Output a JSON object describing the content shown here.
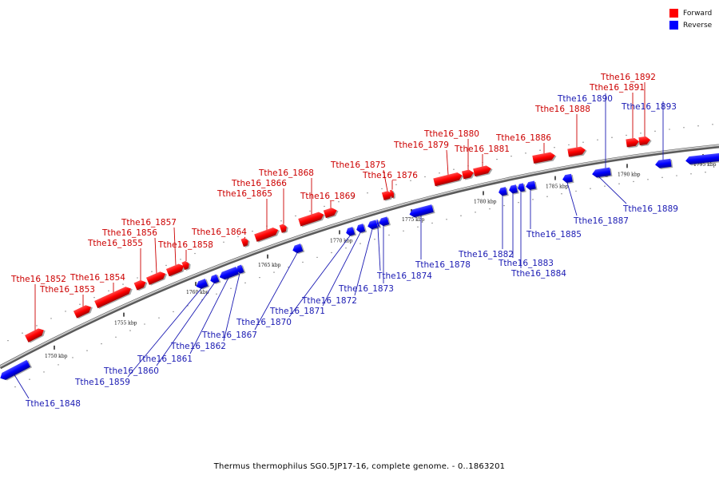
{
  "caption": "Thermus thermophilus SG0.5JP17-16, complete genome. - 0..1863201",
  "legend": {
    "forward_label": "Forward",
    "reverse_label": "Reverse",
    "forward_color": "#ff0000",
    "reverse_color": "#0000ff"
  },
  "colors": {
    "forward_label": "#cc0000",
    "reverse_label": "#1a1ab3",
    "axis": "#888888"
  },
  "ticks": [
    "1750 kbp",
    "1755 kbp",
    "1760 kbp",
    "1765 kbp",
    "1770 kbp",
    "1775 kbp",
    "1780 kbp",
    "1785 kbp",
    "1790 kbp",
    "1795 kbp"
  ],
  "genes": [
    {
      "name": "Tthe16_1848",
      "strand": "reverse"
    },
    {
      "name": "Tthe16_1852",
      "strand": "forward"
    },
    {
      "name": "Tthe16_1853",
      "strand": "forward"
    },
    {
      "name": "Tthe16_1854",
      "strand": "forward"
    },
    {
      "name": "Tthe16_1855",
      "strand": "forward"
    },
    {
      "name": "Tthe16_1856",
      "strand": "forward"
    },
    {
      "name": "Tthe16_1857",
      "strand": "forward"
    },
    {
      "name": "Tthe16_1858",
      "strand": "forward"
    },
    {
      "name": "Tthe16_1859",
      "strand": "reverse"
    },
    {
      "name": "Tthe16_1860",
      "strand": "reverse"
    },
    {
      "name": "Tthe16_1861",
      "strand": "reverse"
    },
    {
      "name": "Tthe16_1862",
      "strand": "reverse"
    },
    {
      "name": "Tthe16_1864",
      "strand": "forward"
    },
    {
      "name": "Tthe16_1865",
      "strand": "forward"
    },
    {
      "name": "Tthe16_1866",
      "strand": "forward"
    },
    {
      "name": "Tthe16_1867",
      "strand": "reverse"
    },
    {
      "name": "Tthe16_1868",
      "strand": "forward"
    },
    {
      "name": "Tthe16_1869",
      "strand": "forward"
    },
    {
      "name": "Tthe16_1870",
      "strand": "reverse"
    },
    {
      "name": "Tthe16_1871",
      "strand": "reverse"
    },
    {
      "name": "Tthe16_1872",
      "strand": "reverse"
    },
    {
      "name": "Tthe16_1873",
      "strand": "reverse"
    },
    {
      "name": "Tthe16_1874",
      "strand": "reverse"
    },
    {
      "name": "Tthe16_1875",
      "strand": "forward"
    },
    {
      "name": "Tthe16_1876",
      "strand": "forward"
    },
    {
      "name": "Tthe16_1878",
      "strand": "reverse"
    },
    {
      "name": "Tthe16_1879",
      "strand": "forward"
    },
    {
      "name": "Tthe16_1880",
      "strand": "forward"
    },
    {
      "name": "Tthe16_1881",
      "strand": "forward"
    },
    {
      "name": "Tthe16_1882",
      "strand": "reverse"
    },
    {
      "name": "Tthe16_1883",
      "strand": "reverse"
    },
    {
      "name": "Tthe16_1884",
      "strand": "reverse"
    },
    {
      "name": "Tthe16_1885",
      "strand": "reverse"
    },
    {
      "name": "Tthe16_1886",
      "strand": "forward"
    },
    {
      "name": "Tthe16_1887",
      "strand": "reverse"
    },
    {
      "name": "Tthe16_1888",
      "strand": "forward"
    },
    {
      "name": "Tthe16_1889",
      "strand": "reverse"
    },
    {
      "name": "Tthe16_1890",
      "strand": "reverse"
    },
    {
      "name": "Tthe16_1891",
      "strand": "forward"
    },
    {
      "name": "Tthe16_1892",
      "strand": "forward"
    },
    {
      "name": "Tthe16_1893",
      "strand": "reverse"
    }
  ]
}
